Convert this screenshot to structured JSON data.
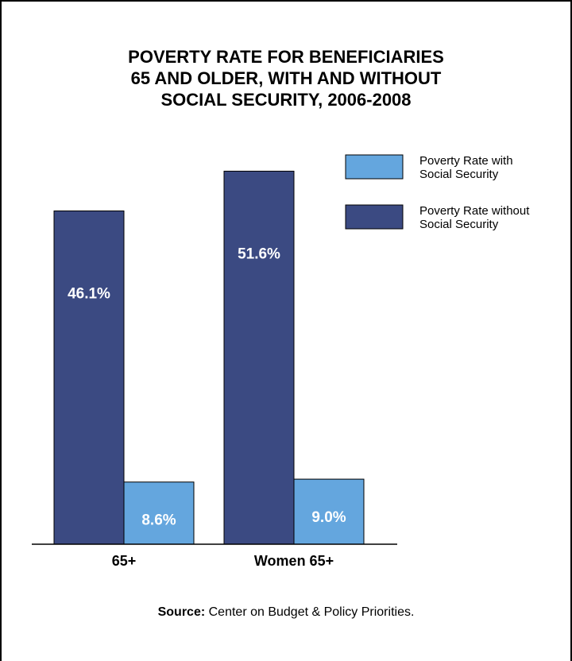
{
  "chart_data": {
    "type": "bar",
    "title_lines": [
      "POVERTY RATE FOR BENEFICIARIES",
      "65 AND OLDER, WITH AND WITHOUT",
      "SOCIAL SECURITY, 2006-2008"
    ],
    "categories": [
      "65+",
      "Women 65+"
    ],
    "series": [
      {
        "name": "Poverty Rate without Social Security",
        "values": [
          46.1,
          51.6
        ],
        "labels": [
          "46.1%",
          "51.6%"
        ],
        "color": "#3b4a82"
      },
      {
        "name": "Poverty Rate with Social Security",
        "values": [
          8.6,
          9.0
        ],
        "labels": [
          "8.6%",
          "9.0%"
        ],
        "color": "#64a6de"
      }
    ],
    "legend": {
      "placement": "top-right",
      "items": [
        {
          "line1": "Poverty Rate with",
          "line2": "Social Security",
          "color": "#64a6de"
        },
        {
          "line1": "Poverty Rate without",
          "line2": "Social Security",
          "color": "#3b4a82"
        }
      ]
    },
    "ylim": [
      0,
      55
    ],
    "grid": false
  },
  "source": {
    "label": "Source:",
    "text": " Center on Budget & Policy Priorities."
  }
}
